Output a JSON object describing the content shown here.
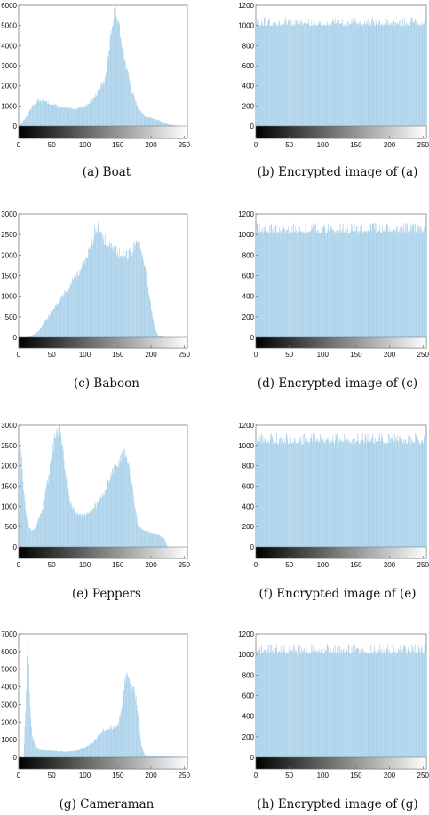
{
  "figure": {
    "panels": [
      {
        "caption": "(a)  Boat",
        "series_color": "#a6cfe9"
      },
      {
        "caption": "(b)  Encrypted image of (a)",
        "series_color": "#a6cfe9"
      },
      {
        "caption": "(c)  Baboon",
        "series_color": "#a6cfe9"
      },
      {
        "caption": "(d)  Encrypted image of (c)",
        "series_color": "#a6cfe9"
      },
      {
        "caption": "(e)  Peppers",
        "series_color": "#a6cfe9"
      },
      {
        "caption": "(f)  Encrypted image of (e)",
        "series_color": "#a6cfe9"
      },
      {
        "caption": "(g)  Cameraman",
        "series_color": "#a6cfe9"
      },
      {
        "caption": "(h)  Encrypted image of (g)",
        "series_color": "#a6cfe9"
      }
    ]
  },
  "chart_data": [
    {
      "type": "bar",
      "panel": "a",
      "shape": "histogram",
      "xlim": [
        0,
        255
      ],
      "ylim": [
        0,
        6000
      ],
      "xticks": [
        0,
        50,
        100,
        150,
        200,
        250
      ],
      "yticks": [
        0,
        1000,
        2000,
        3000,
        4000,
        5000,
        6000
      ],
      "x": [
        0,
        5,
        10,
        20,
        30,
        40,
        50,
        60,
        70,
        80,
        90,
        100,
        110,
        120,
        130,
        135,
        140,
        145,
        150,
        155,
        160,
        170,
        180,
        190,
        200,
        210,
        220,
        230,
        240,
        255
      ],
      "values": [
        0,
        200,
        400,
        1000,
        1300,
        1200,
        1100,
        950,
        900,
        850,
        900,
        1000,
        1250,
        1700,
        2400,
        3400,
        4800,
        5800,
        5400,
        4300,
        3300,
        1800,
        900,
        500,
        400,
        300,
        150,
        50,
        0,
        0
      ]
    },
    {
      "type": "bar",
      "panel": "b",
      "shape": "uniform",
      "xlim": [
        0,
        255
      ],
      "ylim": [
        0,
        1200
      ],
      "xticks": [
        0,
        50,
        100,
        150,
        200,
        250
      ],
      "yticks": [
        0,
        200,
        400,
        600,
        800,
        1000,
        1200
      ],
      "values_range": [
        950,
        1080
      ],
      "mean": 1024
    },
    {
      "type": "bar",
      "panel": "c",
      "shape": "histogram",
      "xlim": [
        0,
        255
      ],
      "ylim": [
        0,
        3000
      ],
      "xticks": [
        0,
        50,
        100,
        150,
        200,
        250
      ],
      "yticks": [
        0,
        500,
        1000,
        1500,
        2000,
        2500,
        3000
      ],
      "x": [
        0,
        10,
        20,
        30,
        40,
        50,
        60,
        70,
        80,
        90,
        100,
        110,
        115,
        120,
        125,
        130,
        140,
        150,
        160,
        170,
        175,
        180,
        185,
        190,
        195,
        200,
        205,
        210,
        220,
        255
      ],
      "values": [
        0,
        0,
        50,
        150,
        400,
        650,
        900,
        1100,
        1350,
        1600,
        1800,
        2300,
        2650,
        2750,
        2550,
        2350,
        2200,
        2050,
        1950,
        2100,
        2250,
        2300,
        2150,
        1800,
        1200,
        700,
        250,
        50,
        0,
        0
      ]
    },
    {
      "type": "bar",
      "panel": "d",
      "shape": "uniform",
      "xlim": [
        0,
        255
      ],
      "ylim": [
        0,
        1200
      ],
      "xticks": [
        0,
        50,
        100,
        150,
        200,
        250
      ],
      "yticks": [
        0,
        200,
        400,
        600,
        800,
        1000,
        1200
      ],
      "values_range": [
        960,
        1110
      ],
      "mean": 1024
    },
    {
      "type": "bar",
      "panel": "e",
      "shape": "histogram",
      "xlim": [
        0,
        255
      ],
      "ylim": [
        0,
        3000
      ],
      "xticks": [
        0,
        50,
        100,
        150,
        200,
        250
      ],
      "yticks": [
        0,
        500,
        1000,
        1500,
        2000,
        2500,
        3000
      ],
      "x": [
        0,
        3,
        6,
        10,
        15,
        20,
        25,
        30,
        35,
        40,
        45,
        50,
        55,
        60,
        65,
        70,
        75,
        80,
        90,
        100,
        110,
        120,
        130,
        140,
        150,
        155,
        160,
        165,
        170,
        175,
        180,
        190,
        200,
        210,
        215,
        220,
        222,
        225,
        255
      ],
      "values": [
        0,
        2400,
        1700,
        900,
        500,
        400,
        500,
        700,
        900,
        1300,
        1700,
        2300,
        2700,
        2900,
        2600,
        1900,
        1300,
        1000,
        800,
        800,
        900,
        1100,
        1400,
        1800,
        2100,
        2200,
        2300,
        2100,
        1600,
        1000,
        500,
        400,
        350,
        300,
        250,
        200,
        100,
        0,
        0
      ]
    },
    {
      "type": "bar",
      "panel": "f",
      "shape": "uniform",
      "xlim": [
        0,
        255
      ],
      "ylim": [
        0,
        1200
      ],
      "xticks": [
        0,
        50,
        100,
        150,
        200,
        250
      ],
      "yticks": [
        0,
        200,
        400,
        600,
        800,
        1000,
        1200
      ],
      "values_range": [
        960,
        1120
      ],
      "mean": 1024
    },
    {
      "type": "bar",
      "panel": "g",
      "shape": "histogram",
      "xlim": [
        0,
        255
      ],
      "ylim": [
        0,
        7000
      ],
      "xticks": [
        0,
        50,
        100,
        150,
        200,
        250
      ],
      "yticks": [
        0,
        1000,
        2000,
        3000,
        4000,
        5000,
        6000,
        7000
      ],
      "x": [
        0,
        7,
        10,
        12,
        14,
        16,
        20,
        25,
        30,
        40,
        50,
        60,
        70,
        80,
        90,
        100,
        110,
        120,
        130,
        140,
        145,
        150,
        155,
        160,
        163,
        166,
        170,
        175,
        180,
        185,
        190,
        200,
        220,
        240,
        255
      ],
      "values": [
        0,
        0,
        2500,
        5500,
        6500,
        3500,
        1200,
        600,
        450,
        400,
        380,
        350,
        330,
        350,
        400,
        550,
        800,
        1200,
        1600,
        1700,
        1650,
        1900,
        2800,
        4200,
        5000,
        4300,
        3900,
        3800,
        2500,
        700,
        150,
        80,
        50,
        30,
        0
      ]
    },
    {
      "type": "bar",
      "panel": "h",
      "shape": "uniform",
      "xlim": [
        0,
        255
      ],
      "ylim": [
        0,
        1200
      ],
      "xticks": [
        0,
        50,
        100,
        150,
        200,
        250
      ],
      "yticks": [
        0,
        200,
        400,
        600,
        800,
        1000,
        1200
      ],
      "values_range": [
        960,
        1100
      ],
      "mean": 1024
    }
  ]
}
